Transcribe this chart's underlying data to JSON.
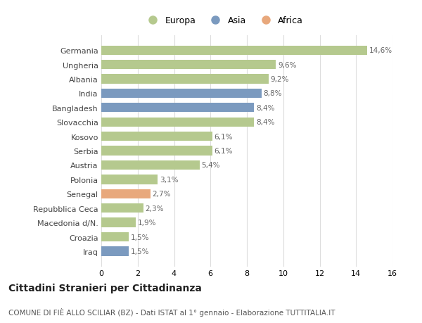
{
  "categories": [
    "Germania",
    "Ungheria",
    "Albania",
    "India",
    "Bangladesh",
    "Slovacchia",
    "Kosovo",
    "Serbia",
    "Austria",
    "Polonia",
    "Senegal",
    "Repubblica Ceca",
    "Macedonia d/N.",
    "Croazia",
    "Iraq"
  ],
  "values": [
    14.6,
    9.6,
    9.2,
    8.8,
    8.4,
    8.4,
    6.1,
    6.1,
    5.4,
    3.1,
    2.7,
    2.3,
    1.9,
    1.5,
    1.5
  ],
  "labels": [
    "14,6%",
    "9,6%",
    "9,2%",
    "8,8%",
    "8,4%",
    "8,4%",
    "6,1%",
    "6,1%",
    "5,4%",
    "3,1%",
    "2,7%",
    "2,3%",
    "1,9%",
    "1,5%",
    "1,5%"
  ],
  "bar_colors": [
    "#b5c98e",
    "#b5c98e",
    "#b5c98e",
    "#7b9abf",
    "#7b9abf",
    "#b5c98e",
    "#b5c98e",
    "#b5c98e",
    "#b5c98e",
    "#b5c98e",
    "#e8a87c",
    "#b5c98e",
    "#b5c98e",
    "#b5c98e",
    "#7b9abf"
  ],
  "legend_labels": [
    "Europa",
    "Asia",
    "Africa"
  ],
  "legend_colors": [
    "#b5c98e",
    "#7b9abf",
    "#e8a87c"
  ],
  "title": "Cittadini Stranieri per Cittadinanza",
  "subtitle": "COMUNE DI FIÈ ALLO SCILIAR (BZ) - Dati ISTAT al 1° gennaio - Elaborazione TUTTITALIA.IT",
  "xlim": [
    0,
    16
  ],
  "xticks": [
    0,
    2,
    4,
    6,
    8,
    10,
    12,
    14,
    16
  ],
  "background_color": "#ffffff",
  "grid_color": "#dddddd",
  "bar_height": 0.65,
  "title_fontsize": 10,
  "subtitle_fontsize": 7.5,
  "label_fontsize": 7.5,
  "tick_fontsize": 8,
  "legend_fontsize": 9
}
